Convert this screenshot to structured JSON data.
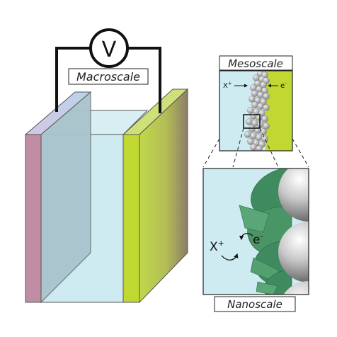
{
  "voltmeter": {
    "symbol": "V"
  },
  "labels": {
    "macroscale": "Macroscale",
    "mesoscale": "Mesoscale",
    "nanoscale": "Nanoscale"
  },
  "mesoscale_panel": {
    "ion_label": "X",
    "ion_charge": "+",
    "electron_label": "e",
    "electron_charge": "-"
  },
  "nanoscale_panel": {
    "ion_label": "X",
    "ion_charge": "+",
    "electron_label": "e",
    "electron_charge": "-"
  },
  "colors": {
    "electrolyte": "#cdebf0",
    "left_electrode": "#c08da4",
    "right_electrode": "#c2d832",
    "separator": "#a9c3cc",
    "ion_layer": "#3f8a5e",
    "particles": "#a9a9a9"
  }
}
